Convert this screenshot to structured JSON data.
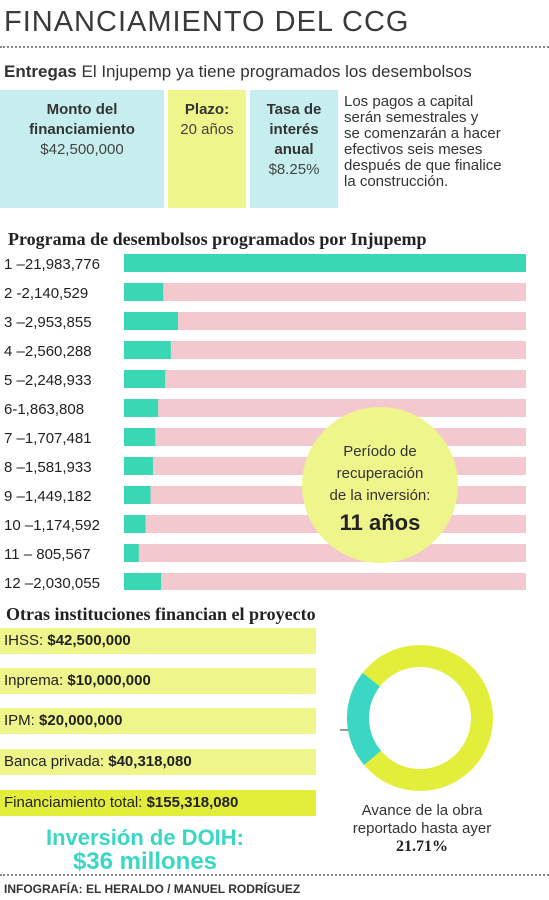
{
  "title": "FINANCIAMIENTO DEL CCG",
  "subtitle": {
    "lead": "Entregas",
    "text": "El Injupemp ya tiene programados los desembolsos"
  },
  "summary": {
    "monto": {
      "label1": "Monto del",
      "label2": "financiamiento",
      "value": "$42,500,000"
    },
    "plazo": {
      "label": "Plazo:",
      "value": "20 años"
    },
    "tasa": {
      "label1": "Tasa de",
      "label2": "interés",
      "label3": "anual",
      "value": "$8.25%"
    },
    "note": [
      "Los pagos a capital",
      "serán semestrales y",
      "se comenzarán a hacer",
      "efectivos seis meses",
      "después de que finalice",
      "la construcción."
    ]
  },
  "recovery": {
    "line1": "Período de",
    "line2": "recuperación",
    "line3": "de la inversión:",
    "value": "11 años"
  },
  "chart_data": {
    "type": "bar",
    "orientation": "horizontal",
    "title": "Programa de desembolsos programados por Injupemp",
    "categories": [
      "1",
      "2",
      "3",
      "4",
      "5",
      "6",
      "7",
      "8",
      "9",
      "10",
      "11",
      "12"
    ],
    "labels": [
      "1 –21,983,776",
      "2 -2,140,529",
      "3 –2,953,855",
      "4 –2,560,288",
      "5 –2,248,933",
      "6-1,863,808",
      "7 –1,707,481",
      "8 –1,581,933",
      "9 –1,449,182",
      "10 –1,174,592",
      "11 – 805,567",
      "12 –2,030,055"
    ],
    "values": [
      21983776,
      2140529,
      2953855,
      2560288,
      2248933,
      1863808,
      1707481,
      1581933,
      1449182,
      1174592,
      805567,
      2030055
    ],
    "xlim": [
      0,
      21983776
    ],
    "bar_color": "#3ad7b4",
    "track_color": "#f3c9cf"
  },
  "others": {
    "title": "Otras instituciones financian el proyecto",
    "items": [
      {
        "name": "IHSS:",
        "amount": "$42,500,000"
      },
      {
        "name": "Inprema:",
        "amount": "$10,000,000"
      },
      {
        "name": "IPM:",
        "amount": "$20,000,000"
      },
      {
        "name": "Banca privada:",
        "amount": "$40,318,080"
      }
    ],
    "total": {
      "name": "Financiamiento total:",
      "amount": "$155,318,080"
    },
    "inversion_label": "Inversión de DOIH:",
    "inversion_value": "$36 millones"
  },
  "progress": {
    "line1": "Avance de la obra",
    "line2": "reportado hasta ayer",
    "value": "21.71%",
    "fraction": 0.2171,
    "done_color": "#3ad7c4",
    "remaining_color": "#e3ee3a"
  },
  "credit": "INFOGRAFÍA: EL HERALDO / MANUEL RODRÍGUEZ"
}
